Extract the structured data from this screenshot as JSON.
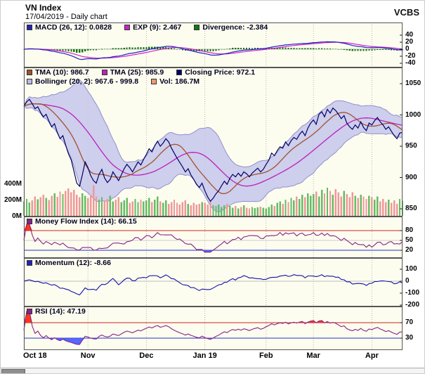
{
  "header": {
    "title": "VN Index",
    "subtitle": "17/04/2019 - Daily chart",
    "brand": "VCBS"
  },
  "panels": {
    "macd": {
      "legend": [
        {
          "label": "MACD (26, 12): 0.0828",
          "color": "#2222bb"
        },
        {
          "label": "EXP (9): 2.467",
          "color": "#cc22cc"
        },
        {
          "label": "Divergence: -2.384",
          "color": "#117711"
        }
      ]
    },
    "price": {
      "legend_row1": [
        {
          "label": "TMA (10): 986.7",
          "color": "#a0522d"
        },
        {
          "label": "TMA (25): 985.9",
          "color": "#bb22bb"
        },
        {
          "label": "Closing Price: 972.1",
          "color": "#000066"
        }
      ],
      "legend_row2": [
        {
          "label": "Bollinger (20, 2): 967.6 - 999.8",
          "color": "#b8b8e8"
        },
        {
          "label": "Vol: 186.7M",
          "color": "#ee9977"
        }
      ]
    },
    "mfi": {
      "legend": [
        {
          "label": "Money Flow Index (14): 66.15",
          "color": "#882288"
        }
      ]
    },
    "momentum": {
      "legend": [
        {
          "label": "Momentum (12): -8.66",
          "color": "#2222bb"
        }
      ]
    },
    "rsi": {
      "legend": [
        {
          "label": "RSI (14): 47.19",
          "color": "#882288"
        }
      ]
    }
  },
  "chart_data": {
    "type": "line",
    "title": "VN Index - 17/04/2019 - Daily chart",
    "x_months": [
      {
        "label": "Oct 18",
        "index": 0
      },
      {
        "label": "Nov",
        "index": 23
      },
      {
        "label": "Dec",
        "index": 44
      },
      {
        "label": "Jan 19",
        "index": 65
      },
      {
        "label": "Feb",
        "index": 87
      },
      {
        "label": "Mar",
        "index": 104
      },
      {
        "label": "Apr",
        "index": 125
      }
    ],
    "close": [
      1014,
      1021,
      1025,
      1018,
      1010,
      1013,
      1004,
      997,
      1001,
      990,
      981,
      986,
      972,
      962,
      967,
      952,
      938,
      928,
      910,
      891,
      886,
      904,
      925,
      916,
      903,
      895,
      891,
      905,
      913,
      899,
      892,
      897,
      909,
      902,
      895,
      904,
      914,
      921,
      916,
      909,
      917,
      925,
      920,
      929,
      937,
      946,
      941,
      951,
      958,
      950,
      955,
      962,
      957,
      947,
      939,
      931,
      924,
      917,
      909,
      914,
      904,
      897,
      889,
      884,
      891,
      879,
      869,
      862,
      867,
      874,
      879,
      887,
      894,
      889,
      899,
      905,
      901,
      907,
      902,
      909,
      906,
      901,
      907,
      911,
      915,
      909,
      913,
      921,
      928,
      939,
      935,
      943,
      949,
      947,
      957,
      951,
      959,
      964,
      961,
      969,
      974,
      967,
      979,
      987,
      992,
      985,
      1001,
      1005,
      997,
      1009,
      1003,
      1011,
      1007,
      1001,
      994,
      999,
      987,
      981,
      977,
      984,
      979,
      989,
      980,
      975,
      987,
      984,
      991,
      996,
      989,
      984,
      977,
      981,
      974,
      967,
      962,
      971,
      972.1
    ],
    "volume_millions": [
      180,
      210,
      165,
      190,
      240,
      205,
      230,
      260,
      220,
      195,
      250,
      280,
      235,
      300,
      270,
      310,
      340,
      290,
      320,
      260,
      230,
      280,
      250,
      220,
      260,
      380,
      240,
      200,
      230,
      190,
      210,
      250,
      180,
      200,
      230,
      170,
      190,
      220,
      160,
      180,
      210,
      170,
      200,
      180,
      190,
      220,
      170,
      200,
      240,
      180,
      160,
      190,
      150,
      170,
      200,
      160,
      140,
      170,
      190,
      150,
      130,
      160,
      140,
      150,
      170,
      160,
      140,
      180,
      130,
      120,
      140,
      110,
      130,
      150,
      120,
      100,
      120,
      90,
      110,
      130,
      100,
      90,
      110,
      95,
      105,
      115,
      100,
      90,
      110,
      140,
      120,
      160,
      180,
      150,
      200,
      170,
      220,
      190,
      240,
      210,
      260,
      230,
      280,
      250,
      270,
      300,
      240,
      320,
      280,
      350,
      310,
      260,
      330,
      290,
      240,
      310,
      270,
      230,
      290,
      250,
      220,
      260,
      240,
      210,
      250,
      230,
      200,
      240,
      180,
      210,
      170,
      200,
      160,
      190,
      150,
      210,
      187
    ],
    "subcharts": {
      "macd": {
        "fast": 12,
        "slow": 26,
        "signal": 9,
        "ylim": [
          -52,
          52
        ],
        "yticks": [
          40,
          20,
          0,
          -20,
          -40
        ]
      },
      "price": {
        "ylim": [
          845,
          1062
        ],
        "yticks": [
          1050,
          1000,
          950,
          900,
          850
        ],
        "volume_yticks": [
          {
            "label": "400M",
            "value": 400
          },
          {
            "label": "200M",
            "value": 200
          },
          {
            "label": "0M",
            "value": 0
          }
        ],
        "bollinger": {
          "period": 20,
          "mult": 2
        },
        "tma_fast": 10,
        "tma_slow": 25
      },
      "mfi": {
        "period": 14,
        "yticks": [
          80,
          50,
          20
        ],
        "overbought": 80,
        "mid": 50,
        "oversold": 20,
        "ylim": [
          0,
          105
        ]
      },
      "momentum": {
        "period": 12,
        "yticks": [
          100,
          0,
          -100,
          -200
        ],
        "ylim": [
          -235,
          135
        ]
      },
      "rsi": {
        "period": 14,
        "yticks": [
          70,
          30
        ],
        "overbought": 70,
        "oversold": 30,
        "ylim": [
          5,
          95
        ]
      }
    },
    "colors": {
      "panel_bg": "#fdfdef",
      "grid": "#b5b5b5",
      "border": "#555555",
      "axis_text": "#000000",
      "macd_line": "#2222bb",
      "exp_line": "#cc22cc",
      "divergence": "#117711",
      "close_line": "#000066",
      "tma10": "#a0522d",
      "tma25": "#bb22bb",
      "boll_fill": "#c6c6ec",
      "boll_edge": "#9090cc",
      "vol_up": "#66bb66",
      "vol_down": "#ee9999",
      "mfi_line": "#882288",
      "momentum_line": "#1111aa",
      "rsi_line": "#882288",
      "ob_line": "#cc2222",
      "os_line": "#2233cc",
      "mid_line": "#cccccc",
      "ob_fill": "#ff2200",
      "os_fill": "#4455ff"
    }
  }
}
